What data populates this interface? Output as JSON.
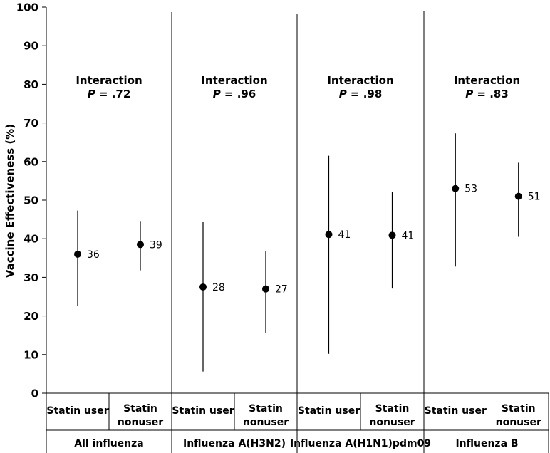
{
  "chart_data": {
    "type": "scatter",
    "subtype": "point-estimate-with-error-bars",
    "ylabel": "Vaccine Effectiveness (%)",
    "ylim": [
      0,
      100
    ],
    "yticks": [
      0,
      10,
      20,
      30,
      40,
      50,
      60,
      70,
      80,
      90,
      100
    ],
    "grid": false,
    "groups": [
      {
        "name": "All influenza",
        "interaction_label": "Interaction",
        "p_label": "P",
        "p_value": "= .72",
        "subgroups": [
          {
            "label_lines": [
              "Statin user"
            ],
            "value": 36,
            "value_label": "36",
            "lower": 22.5,
            "upper": 47.3
          },
          {
            "label_lines": [
              "Statin",
              "nonuser"
            ],
            "value": 38.5,
            "value_label": "39",
            "lower": 31.8,
            "upper": 44.6
          }
        ]
      },
      {
        "name": "Influenza A(H3N2)",
        "interaction_label": "Interaction",
        "p_label": "P",
        "p_value": "= .96",
        "subgroups": [
          {
            "label_lines": [
              "Statin user"
            ],
            "value": 27.5,
            "value_label": "28",
            "lower": 5.6,
            "upper": 44.3
          },
          {
            "label_lines": [
              "Statin",
              "nonuser"
            ],
            "value": 27,
            "value_label": "27",
            "lower": 15.5,
            "upper": 36.8
          }
        ]
      },
      {
        "name": "Influenza A(H1N1)pdm09",
        "interaction_label": "Interaction",
        "p_label": "P",
        "p_value": "= .98",
        "subgroups": [
          {
            "label_lines": [
              "Statin user"
            ],
            "value": 41.1,
            "value_label": "41",
            "lower": 10.2,
            "upper": 61.5
          },
          {
            "label_lines": [
              "Statin",
              "nonuser"
            ],
            "value": 40.9,
            "value_label": "41",
            "lower": 27.1,
            "upper": 52.2
          }
        ]
      },
      {
        "name": "Influenza B",
        "interaction_label": "Interaction",
        "p_label": "P",
        "p_value": "= .83",
        "subgroups": [
          {
            "label_lines": [
              "Statin user"
            ],
            "value": 53,
            "value_label": "53",
            "lower": 32.8,
            "upper": 67.3
          },
          {
            "label_lines": [
              "Statin",
              "nonuser"
            ],
            "value": 51,
            "value_label": "51",
            "lower": 40.5,
            "upper": 59.7
          }
        ]
      }
    ]
  }
}
